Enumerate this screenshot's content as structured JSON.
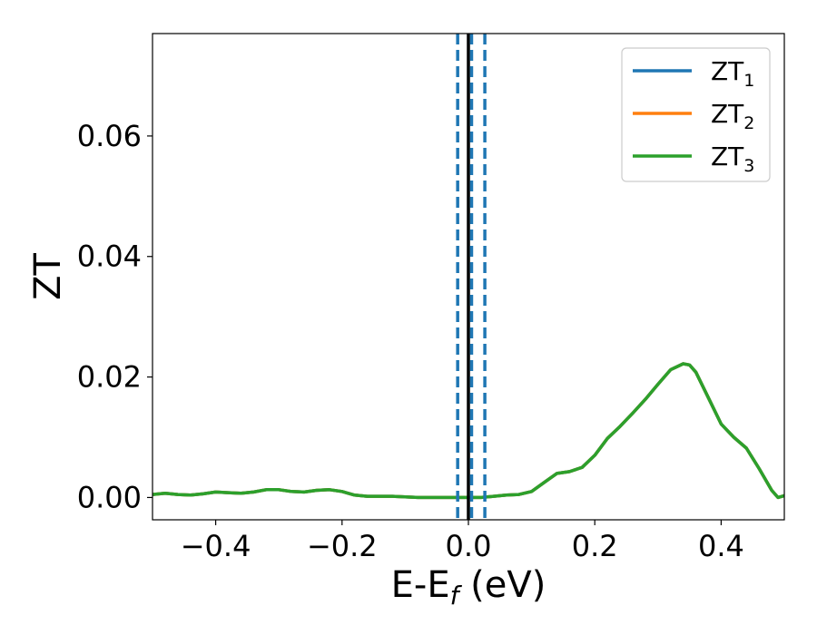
{
  "chart_data": {
    "type": "line",
    "xlabel": "E-E",
    "xlabel_subscript": "f",
    "xlabel_unit": " (eV)",
    "ylabel": "ZT",
    "xlim": [
      -0.5,
      0.5
    ],
    "ylim": [
      -0.0037,
      0.077
    ],
    "xticks": [
      -0.4,
      -0.2,
      0.0,
      0.2,
      0.4
    ],
    "xtick_labels": [
      "−0.4",
      "−0.2",
      "0.0",
      "0.2",
      "0.4"
    ],
    "yticks": [
      0.0,
      0.02,
      0.04,
      0.06
    ],
    "ytick_labels": [
      "0.00",
      "0.02",
      "0.04",
      "0.06"
    ],
    "legend_position": "top-right",
    "grid": false,
    "x": [
      -0.5,
      -0.48,
      -0.46,
      -0.44,
      -0.42,
      -0.4,
      -0.38,
      -0.36,
      -0.34,
      -0.32,
      -0.3,
      -0.28,
      -0.26,
      -0.24,
      -0.22,
      -0.2,
      -0.18,
      -0.16,
      -0.14,
      -0.12,
      -0.1,
      -0.08,
      -0.06,
      -0.04,
      -0.02,
      0.0,
      0.02,
      0.04,
      0.06,
      0.08,
      0.1,
      0.12,
      0.14,
      0.16,
      0.18,
      0.2,
      0.22,
      0.24,
      0.26,
      0.28,
      0.3,
      0.32,
      0.34,
      0.35,
      0.36,
      0.38,
      0.4,
      0.42,
      0.44,
      0.46,
      0.48,
      0.49,
      0.5
    ],
    "series": [
      {
        "name": "ZT",
        "subscript": "1",
        "color": "#1f77b4",
        "values": [
          0.0005,
          0.0007,
          0.0005,
          0.0004,
          0.0006,
          0.0009,
          0.0008,
          0.0007,
          0.0009,
          0.0013,
          0.0013,
          0.001,
          0.0009,
          0.0012,
          0.0013,
          0.001,
          0.0004,
          0.0002,
          0.0002,
          0.0002,
          0.0001,
          0.0,
          0.0,
          0.0,
          0.0,
          0.0,
          0.0,
          0.0002,
          0.0004,
          0.0005,
          0.001,
          0.0025,
          0.004,
          0.0043,
          0.005,
          0.007,
          0.0098,
          0.0118,
          0.014,
          0.0163,
          0.0188,
          0.0212,
          0.0222,
          0.022,
          0.0208,
          0.0165,
          0.0122,
          0.01,
          0.0082,
          0.0048,
          0.0012,
          0.0,
          0.0003
        ]
      },
      {
        "name": "ZT",
        "subscript": "2",
        "color": "#ff7f0e",
        "values": [
          0.0005,
          0.0007,
          0.0005,
          0.0004,
          0.0006,
          0.0009,
          0.0008,
          0.0007,
          0.0009,
          0.0013,
          0.0013,
          0.001,
          0.0009,
          0.0012,
          0.0013,
          0.001,
          0.0004,
          0.0002,
          0.0002,
          0.0002,
          0.0001,
          0.0,
          0.0,
          0.0,
          0.0,
          0.0,
          0.0,
          0.0002,
          0.0004,
          0.0005,
          0.001,
          0.0025,
          0.004,
          0.0043,
          0.005,
          0.007,
          0.0098,
          0.0118,
          0.014,
          0.0163,
          0.0188,
          0.0212,
          0.0222,
          0.022,
          0.0208,
          0.0165,
          0.0122,
          0.01,
          0.0082,
          0.0048,
          0.0012,
          0.0,
          0.0003
        ]
      },
      {
        "name": "ZT",
        "subscript": "3",
        "color": "#2ca02c",
        "values": [
          0.0005,
          0.0007,
          0.0005,
          0.0004,
          0.0006,
          0.0009,
          0.0008,
          0.0007,
          0.0009,
          0.0013,
          0.0013,
          0.001,
          0.0009,
          0.0012,
          0.0013,
          0.001,
          0.0004,
          0.0002,
          0.0002,
          0.0002,
          0.0001,
          0.0,
          0.0,
          0.0,
          0.0,
          0.0,
          0.0,
          0.0002,
          0.0004,
          0.0005,
          0.001,
          0.0025,
          0.004,
          0.0043,
          0.005,
          0.007,
          0.0098,
          0.0118,
          0.014,
          0.0163,
          0.0188,
          0.0212,
          0.0222,
          0.022,
          0.0208,
          0.0165,
          0.0122,
          0.01,
          0.0082,
          0.0048,
          0.0012,
          0.0,
          0.0003
        ]
      }
    ],
    "vertical_lines": [
      {
        "x": 0.0,
        "style": "solid",
        "color": "#000000"
      },
      {
        "x": -0.017,
        "style": "dashed",
        "color": "#1f77b4"
      },
      {
        "x": 0.005,
        "style": "dashed",
        "color": "#1f77b4"
      },
      {
        "x": 0.026,
        "style": "dashed",
        "color": "#1f77b4"
      }
    ]
  }
}
